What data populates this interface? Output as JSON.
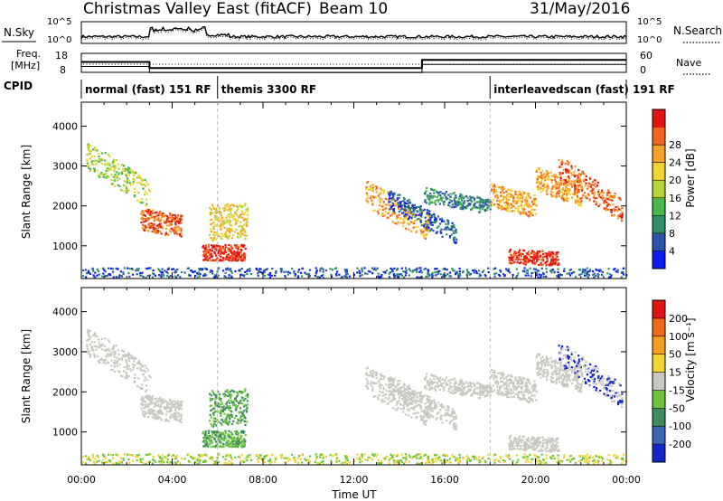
{
  "header": {
    "title": "Christmas Valley East (fitACF)",
    "beam": "Beam 10",
    "date": "31/May/2016"
  },
  "chart_data": [
    {
      "type": "line",
      "name": "noise-panel",
      "left_label": "N.Sky",
      "right_label": "N.Search",
      "left_ticks": [
        "10^5",
        "10^0"
      ],
      "right_ticks": [
        "10^5",
        "10^0"
      ],
      "x_range_hours": [
        0,
        24
      ],
      "series_desc": "N.Sky noise (solid, black) and N.Search (dotted)"
    },
    {
      "type": "line",
      "name": "freq-nave-panel",
      "left_label_line1": "Freq.",
      "left_label_line2": "[MHz]",
      "right_label": "Nave",
      "left_ticks": [
        "18",
        "8"
      ],
      "right_ticks": [
        "60",
        "0"
      ],
      "freq_steps": [
        {
          "from_hour": 0,
          "to_hour": 3,
          "mhz": 13.5
        },
        {
          "from_hour": 3,
          "to_hour": 15,
          "mhz": 10.3
        },
        {
          "from_hour": 15,
          "to_hour": 24,
          "mhz": 14.5
        }
      ]
    },
    {
      "type": "table",
      "name": "cpid-panel",
      "label": "CPID",
      "segments": [
        {
          "from_hour": 0,
          "to_hour": 6,
          "text": "normal (fast) 151 RF"
        },
        {
          "from_hour": 6,
          "to_hour": 18,
          "text": "themis 3300 RF"
        },
        {
          "from_hour": 18,
          "to_hour": 24,
          "text": "interleavedscan (fast) 191 RF"
        }
      ]
    },
    {
      "type": "heatmap",
      "name": "power-panel",
      "ylabel": "Slant Range [km]",
      "yticks": [
        1000,
        2000,
        3000,
        4000
      ],
      "ylim": [
        180,
        4600
      ],
      "x_range_hours": [
        0,
        24
      ],
      "colorbar": {
        "label": "Power [dB]",
        "ticks": [
          "4",
          "8",
          "12",
          "16",
          "20",
          "24",
          "28"
        ],
        "colors": [
          "#0a1ef0",
          "#2a54a8",
          "#2f8f6b",
          "#48b84a",
          "#b7d437",
          "#f2d430",
          "#f4a22a",
          "#f0661e",
          "#e01414"
        ]
      }
    },
    {
      "type": "heatmap",
      "name": "velocity-panel",
      "ylabel": "Slant Range [km]",
      "yticks": [
        1000,
        2000,
        3000,
        4000
      ],
      "ylim": [
        180,
        4600
      ],
      "x_range_hours": [
        0,
        24
      ],
      "xlabel": "Time UT",
      "xticks": [
        "00:00",
        "04:00",
        "08:00",
        "12:00",
        "16:00",
        "20:00",
        "00:00"
      ],
      "colorbar": {
        "label": "Velocity [m s⁻¹]",
        "ticks": [
          "200",
          "100",
          "50",
          "15",
          "-15",
          "-50",
          "-100",
          "-200"
        ],
        "colors": [
          "#1426c8",
          "#3a64b4",
          "#3d8c5c",
          "#6fc43d",
          "#c8c8c0",
          "#f2d430",
          "#f4a01e",
          "#f06a1a",
          "#e01414"
        ]
      }
    }
  ]
}
